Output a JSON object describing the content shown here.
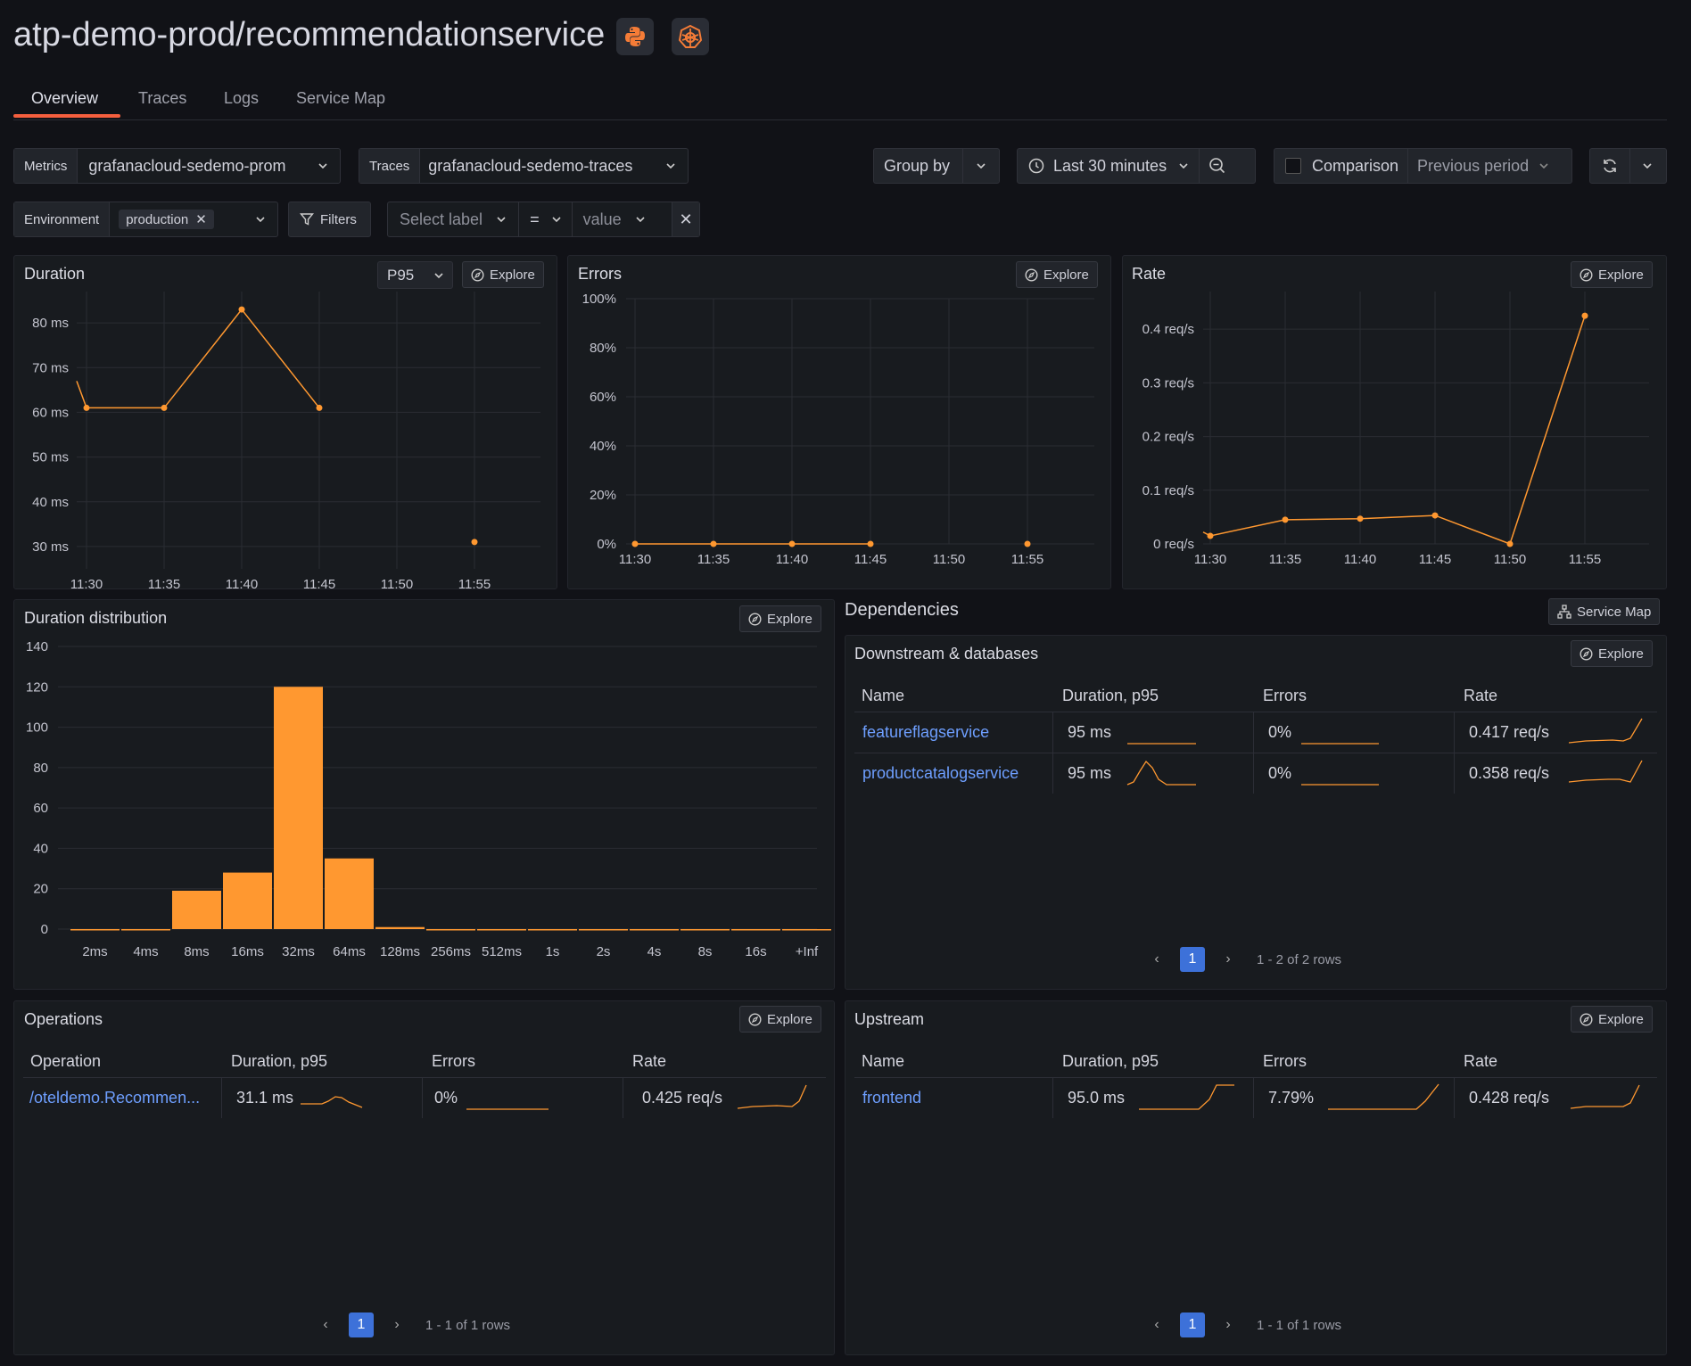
{
  "header": {
    "title": "atp-demo-prod/recommendationservice",
    "icons": [
      "python-icon",
      "kubernetes-icon"
    ],
    "accent_color": "#f55f3e"
  },
  "tabs": [
    {
      "label": "Overview",
      "active": true
    },
    {
      "label": "Traces",
      "active": false
    },
    {
      "label": "Logs",
      "active": false
    },
    {
      "label": "Service Map",
      "active": false
    }
  ],
  "controls": {
    "metrics_label": "Metrics",
    "metrics_value": "grafanacloud-sedemo-prom",
    "traces_label": "Traces",
    "traces_value": "grafanacloud-sedemo-traces",
    "group_by": "Group by",
    "time_range": "Last 30 minutes",
    "comparison": "Comparison",
    "comparison_period": "Previous period",
    "environment_label": "Environment",
    "environment_value": "production",
    "filters": "Filters",
    "select_label": "Select label",
    "operator": "=",
    "value_placeholder": "value"
  },
  "duration_panel": {
    "title": "Duration",
    "percentile": "P95",
    "explore": "Explore",
    "chart_data": {
      "type": "line",
      "x": [
        "11:30",
        "11:35",
        "11:40",
        "11:45",
        "11:50",
        "11:55"
      ],
      "y_ticks": [
        "30 ms",
        "40 ms",
        "50 ms",
        "60 ms",
        "70 ms",
        "80 ms"
      ],
      "ylim": [
        25,
        87
      ],
      "series": [
        {
          "values": [
            61,
            61,
            83,
            61,
            null,
            31
          ]
        }
      ],
      "line_color": "#ff9830"
    }
  },
  "errors_panel": {
    "title": "Errors",
    "explore": "Explore",
    "chart_data": {
      "type": "line",
      "x": [
        "11:30",
        "11:35",
        "11:40",
        "11:45",
        "11:50",
        "11:55"
      ],
      "y_ticks": [
        "0%",
        "20%",
        "40%",
        "60%",
        "80%",
        "100%"
      ],
      "ylim": [
        0,
        100
      ],
      "series": [
        {
          "values": [
            0,
            0,
            0,
            0,
            null,
            0
          ]
        }
      ]
    }
  },
  "rate_panel": {
    "title": "Rate",
    "explore": "Explore",
    "chart_data": {
      "type": "line",
      "x": [
        "11:30",
        "11:35",
        "11:40",
        "11:45",
        "11:50",
        "11:55"
      ],
      "y_ticks": [
        "0 req/s",
        "0.1 req/s",
        "0.2 req/s",
        "0.3 req/s",
        "0.4 req/s"
      ],
      "ylim": [
        0,
        0.47
      ],
      "series": [
        {
          "values": [
            0.015,
            0.045,
            0.047,
            0.053,
            0.0,
            0.425
          ]
        }
      ]
    }
  },
  "distribution_panel": {
    "title": "Duration distribution",
    "explore": "Explore",
    "chart_data": {
      "type": "bar",
      "categories": [
        "2ms",
        "4ms",
        "8ms",
        "16ms",
        "32ms",
        "64ms",
        "128ms",
        "256ms",
        "512ms",
        "1s",
        "2s",
        "4s",
        "8s",
        "16s",
        "+Inf"
      ],
      "values": [
        0,
        0,
        19,
        28,
        120,
        35,
        1,
        0,
        0,
        0,
        0,
        0,
        0,
        0,
        0
      ],
      "y_ticks": [
        "0",
        "20",
        "40",
        "60",
        "80",
        "100",
        "120",
        "140"
      ],
      "ylim": [
        0,
        140
      ],
      "bar_color": "#ff9830"
    }
  },
  "dependencies": {
    "title": "Dependencies",
    "service_map": "Service Map",
    "downstream": {
      "title": "Downstream & databases",
      "explore": "Explore",
      "columns": [
        "Name",
        "Duration, p95",
        "Errors",
        "Rate"
      ],
      "rows": [
        {
          "name": "featureflagservice",
          "duration": "95 ms",
          "errors": "0%",
          "rate": "0.417 req/s"
        },
        {
          "name": "productcatalogservice",
          "duration": "95 ms",
          "errors": "0%",
          "rate": "0.358 req/s"
        }
      ],
      "page": "1",
      "summary": "1 - 2 of 2 rows"
    }
  },
  "operations": {
    "title": "Operations",
    "explore": "Explore",
    "columns": [
      "Operation",
      "Duration, p95",
      "Errors",
      "Rate"
    ],
    "rows": [
      {
        "name": "/oteldemo.Recommen...",
        "duration": "31.1 ms",
        "errors": "0%",
        "rate": "0.425 req/s"
      }
    ],
    "page": "1",
    "summary": "1 - 1 of 1 rows"
  },
  "upstream": {
    "title": "Upstream",
    "explore": "Explore",
    "columns": [
      "Name",
      "Duration, p95",
      "Errors",
      "Rate"
    ],
    "rows": [
      {
        "name": "frontend",
        "duration": "95.0 ms",
        "errors": "7.79%",
        "rate": "0.428 req/s"
      }
    ],
    "page": "1",
    "summary": "1 - 1 of 1 rows"
  }
}
